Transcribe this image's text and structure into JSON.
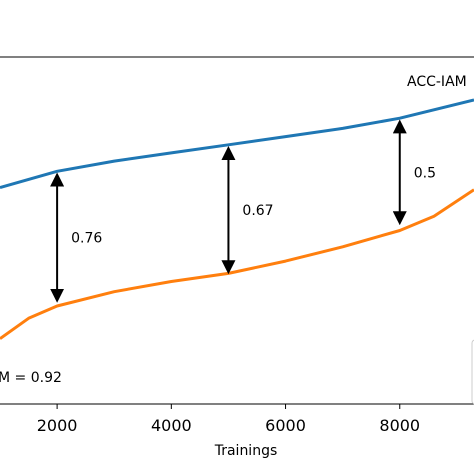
{
  "chart_data": {
    "type": "line",
    "xlabel": "Trainings",
    "x_ticks": [
      2000,
      4000,
      6000,
      8000
    ],
    "xlim": [
      1000,
      9300
    ],
    "ylim": [
      0.1,
      1.8
    ],
    "grid": false,
    "series": [
      {
        "color": "#1f77b4",
        "x": [
          1000,
          2000,
          3000,
          4000,
          5000,
          6000,
          7000,
          8000,
          9300
        ],
        "y": [
          1.16,
          1.24,
          1.29,
          1.33,
          1.37,
          1.41,
          1.45,
          1.5,
          1.59
        ]
      },
      {
        "color": "#ff7f0e",
        "x": [
          1000,
          1500,
          2000,
          3000,
          4000,
          5000,
          6000,
          7000,
          8000,
          8600,
          9300
        ],
        "y": [
          0.42,
          0.52,
          0.58,
          0.65,
          0.7,
          0.74,
          0.8,
          0.87,
          0.95,
          1.02,
          1.15
        ]
      }
    ],
    "annotations": [
      {
        "text": "0.76",
        "x": 2000,
        "y_top": 1.24,
        "y_bottom": 0.59
      },
      {
        "text": "0.67",
        "x": 5000,
        "y_top": 1.37,
        "y_bottom": 0.73
      },
      {
        "text": "0.5",
        "x": 8000,
        "y_top": 1.5,
        "y_bottom": 0.97
      }
    ],
    "text_labels": {
      "top_right": "ACC-IAM",
      "bottom_left": "M = 0.92"
    }
  }
}
